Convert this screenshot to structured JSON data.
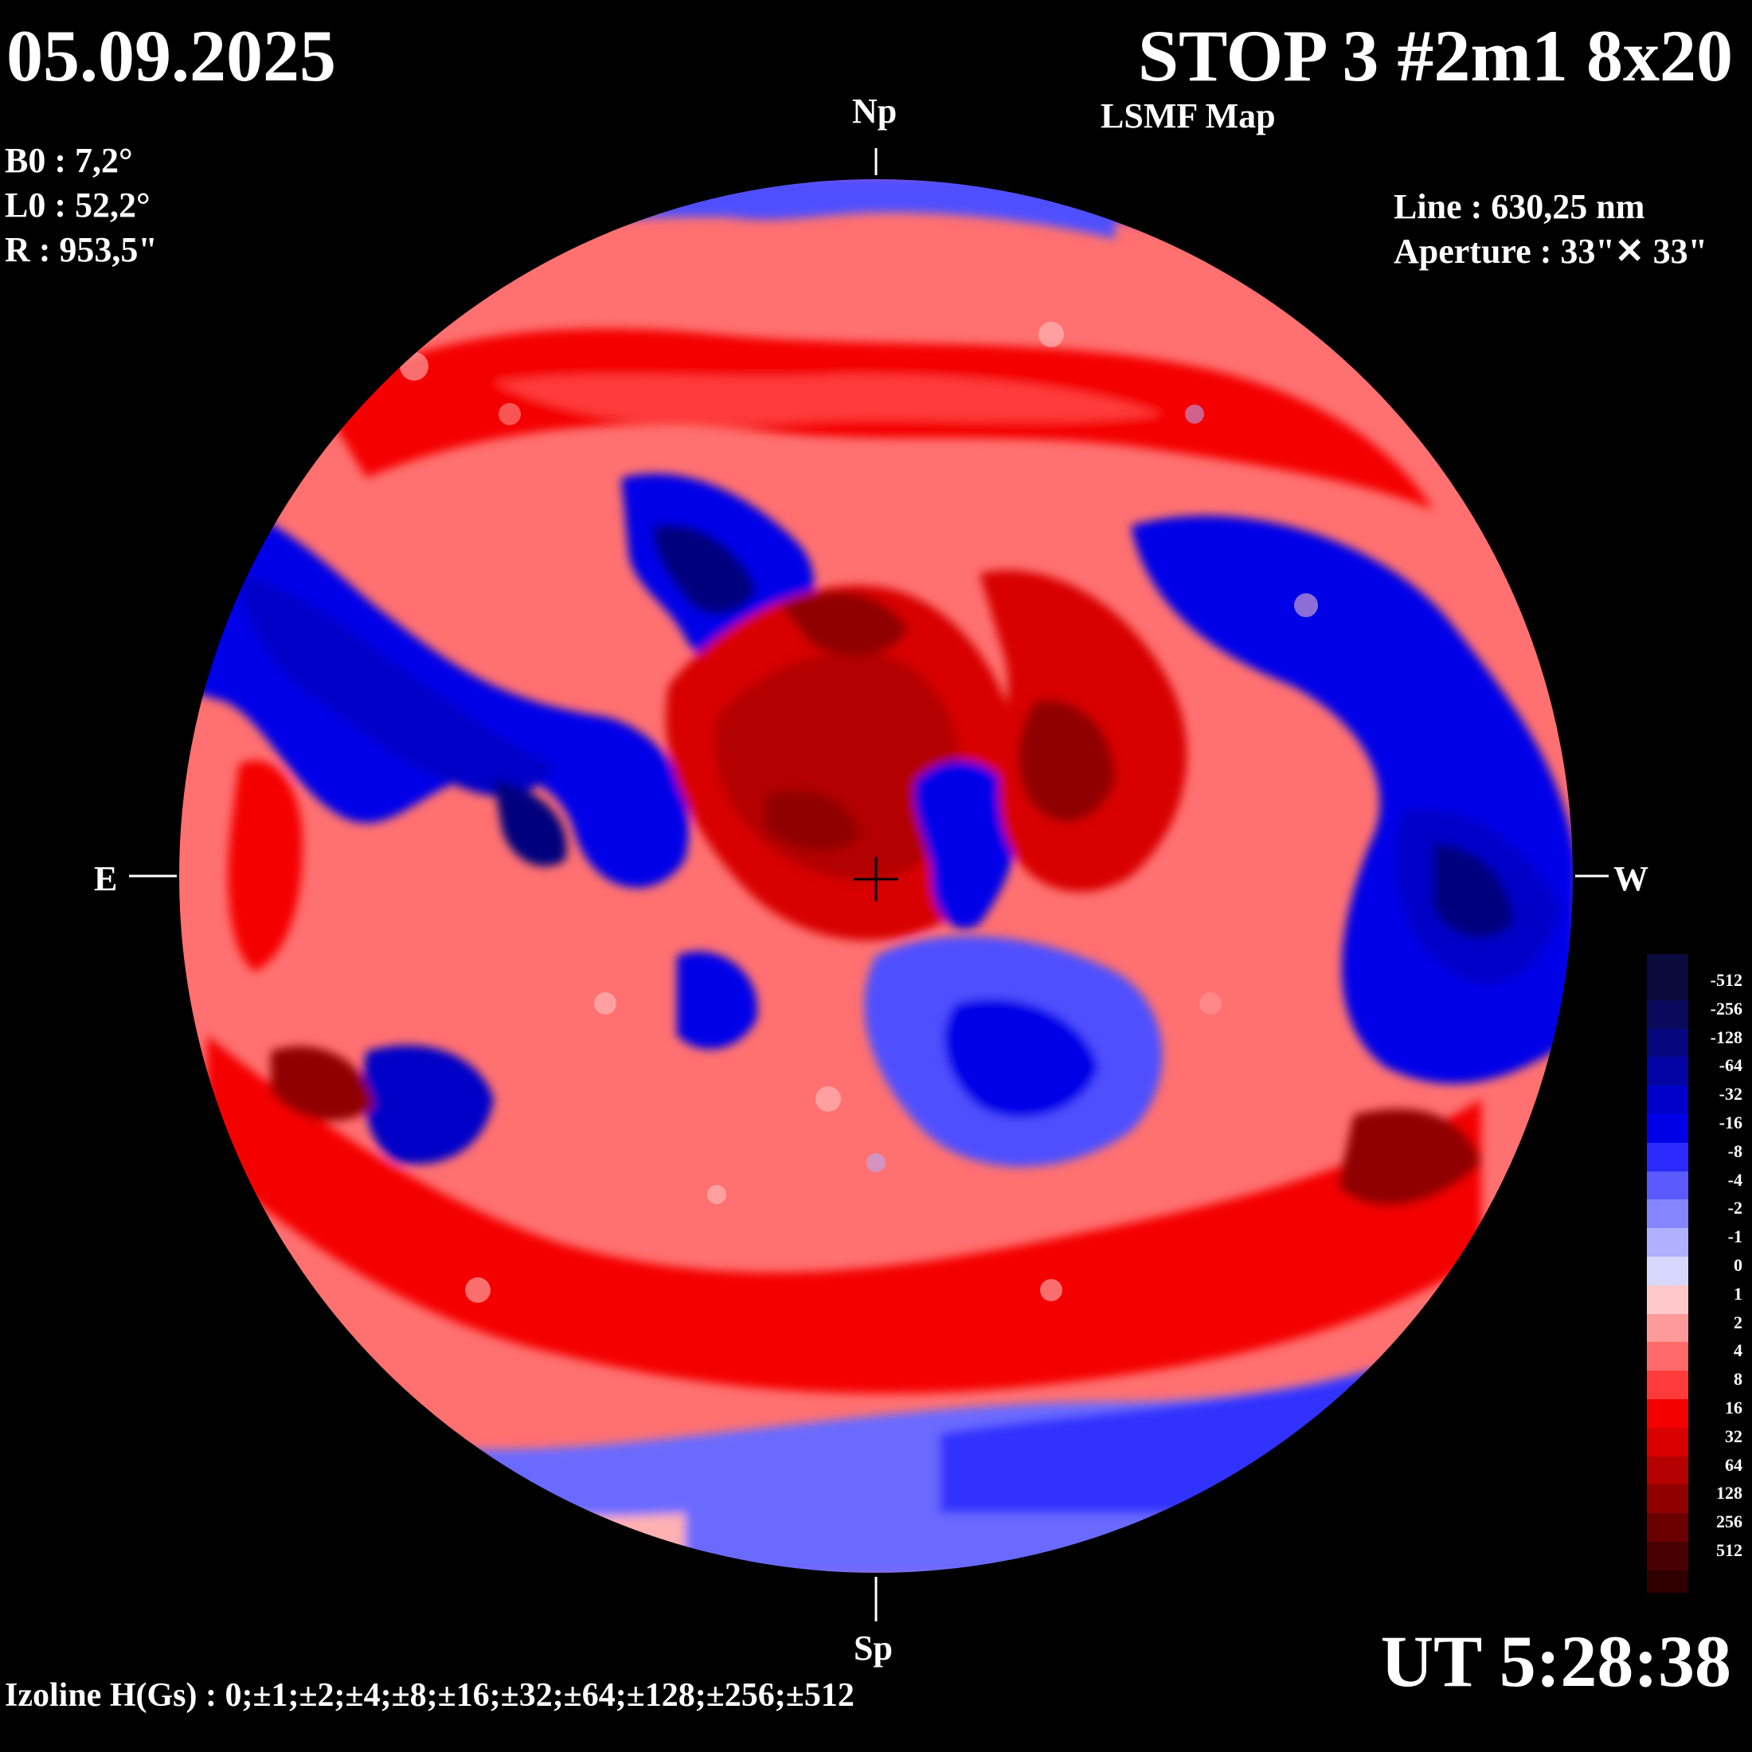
{
  "header": {
    "date": "05.09.2025",
    "title": "STOP 3 #2m1 8x20",
    "subtitle": "LSMF  Map"
  },
  "params": {
    "b0": "B0 : 7,2°",
    "l0": "L0 : 52,2°",
    "r": "R  : 953,5\""
  },
  "instrument": {
    "line": "Line :  630,25 nm",
    "aperture": "Aperture : 33\"✕ 33\""
  },
  "directions": {
    "north": "Np",
    "south": "Sp",
    "east": "E",
    "west": "W"
  },
  "time": "UT 5:28:38",
  "isolines": "Izoline H(Gs) : 0;±1;±2;±4;±8;±16;±32;±64;±128;±256;±512",
  "legend": {
    "levels": [
      {
        "label": "-512",
        "color": "#0a0a3c"
      },
      {
        "label": "-256",
        "color": "#0a0a5c"
      },
      {
        "label": "-128",
        "color": "#06067e"
      },
      {
        "label": "-64",
        "color": "#0404a4"
      },
      {
        "label": "-32",
        "color": "#0000c8"
      },
      {
        "label": "-16",
        "color": "#0000e8"
      },
      {
        "label": "-8",
        "color": "#2a2aff"
      },
      {
        "label": "-4",
        "color": "#5a5aff"
      },
      {
        "label": "-2",
        "color": "#8585ff"
      },
      {
        "label": "-1",
        "color": "#b0b0ff"
      },
      {
        "label": "0",
        "color": "#d8d8ff"
      },
      {
        "label": "1",
        "color": "#ffc8c8"
      },
      {
        "label": "2",
        "color": "#ff9a9a"
      },
      {
        "label": "4",
        "color": "#ff6a6a"
      },
      {
        "label": "8",
        "color": "#ff3a3a"
      },
      {
        "label": "16",
        "color": "#f40000"
      },
      {
        "label": "32",
        "color": "#d80000"
      },
      {
        "label": "64",
        "color": "#b40000"
      },
      {
        "label": "128",
        "color": "#900000"
      },
      {
        "label": "256",
        "color": "#6a0000"
      },
      {
        "label": "512",
        "color": "#480000"
      }
    ],
    "bottom_color": "#300000"
  }
}
